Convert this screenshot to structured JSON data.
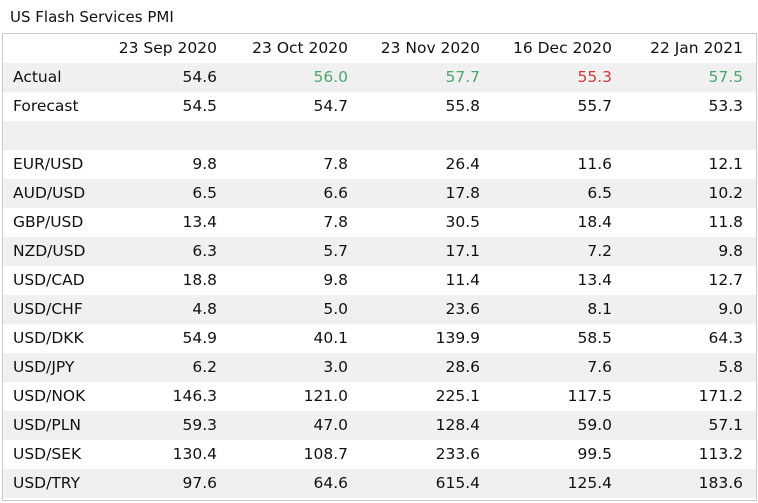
{
  "title": "US Flash Services PMI",
  "columns": [
    "23 Sep 2020",
    "23 Oct 2020",
    "23 Nov 2020",
    "16 Dec 2020",
    "22 Jan 2021"
  ],
  "colors": {
    "above_forecast": "#4aa86a",
    "below_forecast": "#d33838",
    "row_shade": "#f0f0f0",
    "border": "#c9c9c9"
  },
  "rows": [
    {
      "label": "Actual",
      "values": [
        "54.6",
        "56.0",
        "57.7",
        "55.3",
        "57.5"
      ],
      "status": [
        "neutral",
        "above",
        "above",
        "below",
        "above"
      ]
    },
    {
      "label": "Forecast",
      "values": [
        "54.5",
        "54.7",
        "55.8",
        "55.7",
        "53.3"
      ]
    },
    {
      "label": "",
      "values": [
        "",
        "",
        "",
        "",
        ""
      ]
    },
    {
      "label": "EUR/USD",
      "values": [
        "9.8",
        "7.8",
        "26.4",
        "11.6",
        "12.1"
      ]
    },
    {
      "label": "AUD/USD",
      "values": [
        "6.5",
        "6.6",
        "17.8",
        "6.5",
        "10.2"
      ]
    },
    {
      "label": "GBP/USD",
      "values": [
        "13.4",
        "7.8",
        "30.5",
        "18.4",
        "11.8"
      ]
    },
    {
      "label": "NZD/USD",
      "values": [
        "6.3",
        "5.7",
        "17.1",
        "7.2",
        "9.8"
      ]
    },
    {
      "label": "USD/CAD",
      "values": [
        "18.8",
        "9.8",
        "11.4",
        "13.4",
        "12.7"
      ]
    },
    {
      "label": "USD/CHF",
      "values": [
        "4.8",
        "5.0",
        "23.6",
        "8.1",
        "9.0"
      ]
    },
    {
      "label": "USD/DKK",
      "values": [
        "54.9",
        "40.1",
        "139.9",
        "58.5",
        "64.3"
      ]
    },
    {
      "label": "USD/JPY",
      "values": [
        "6.2",
        "3.0",
        "28.6",
        "7.6",
        "5.8"
      ]
    },
    {
      "label": "USD/NOK",
      "values": [
        "146.3",
        "121.0",
        "225.1",
        "117.5",
        "171.2"
      ]
    },
    {
      "label": "USD/PLN",
      "values": [
        "59.3",
        "47.0",
        "128.4",
        "59.0",
        "57.1"
      ]
    },
    {
      "label": "USD/SEK",
      "values": [
        "130.4",
        "108.7",
        "233.6",
        "99.5",
        "113.2"
      ]
    },
    {
      "label": "USD/TRY",
      "values": [
        "97.6",
        "64.6",
        "615.4",
        "125.4",
        "183.6"
      ]
    }
  ]
}
